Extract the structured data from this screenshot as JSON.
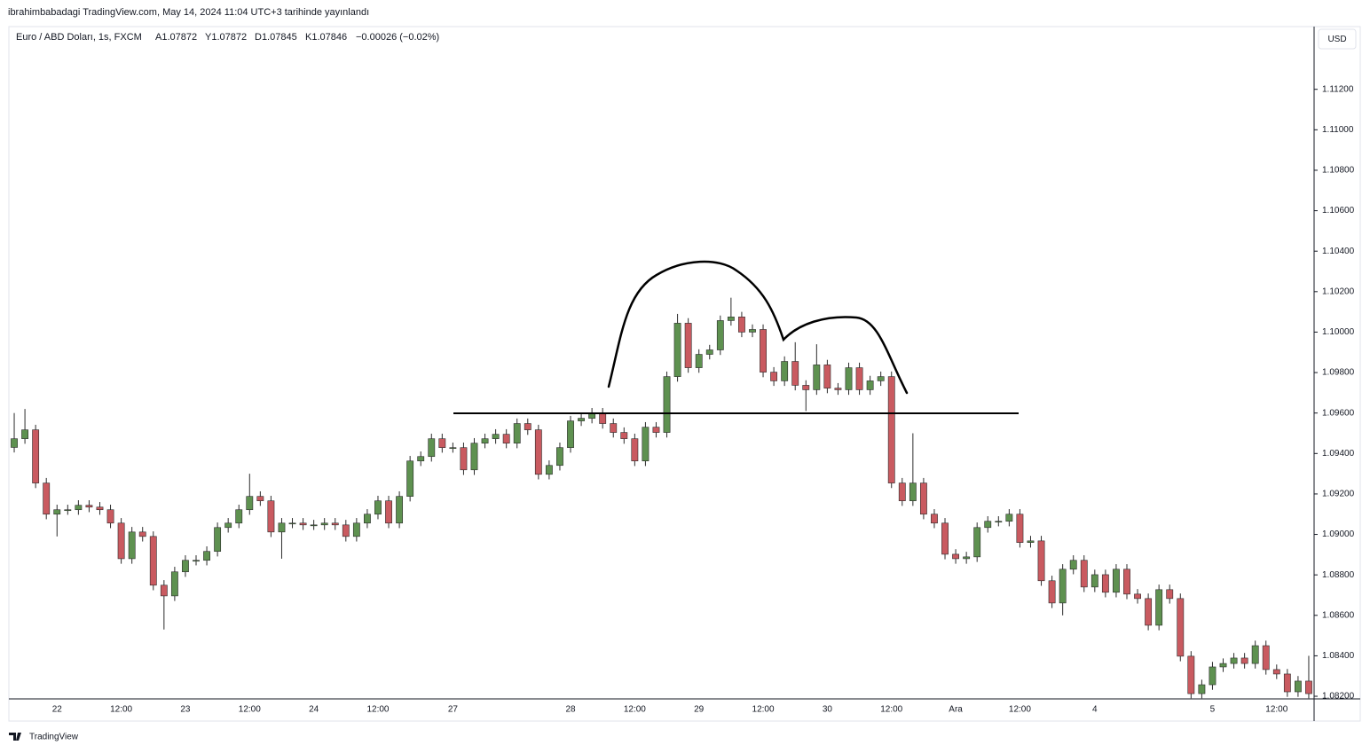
{
  "header": {
    "text": "ibrahimbabadagi TradingView.com, May 14, 2024 11:04 UTC+3 tarihinde yayınlandı"
  },
  "legend": {
    "symbol": "Euro / ABD Doları, 1s, FXCM",
    "open": "A1.07872",
    "high": "Y1.07872",
    "low": "D1.07845",
    "close": "K1.07846",
    "change": "−0.00026 (−0.02%)"
  },
  "currency_button": "USD",
  "footer": "TradingView",
  "chart_data": {
    "type": "candlestick",
    "up_color": "#5e9150",
    "down_color": "#c95a60",
    "wick_color": "#2b2b2b",
    "categories": [
      null,
      null,
      null,
      null,
      "22",
      null,
      null,
      null,
      null,
      null,
      "12:00",
      null,
      null,
      null,
      null,
      null,
      "23",
      null,
      null,
      null,
      null,
      null,
      "12:00",
      null,
      null,
      null,
      null,
      null,
      "24",
      null,
      null,
      null,
      null,
      null,
      "12:00",
      null,
      null,
      null,
      null,
      null,
      null,
      "27",
      null,
      null,
      null,
      null,
      null,
      null,
      null,
      null,
      null,
      null,
      "28",
      null,
      null,
      null,
      null,
      null,
      "12:00",
      null,
      null,
      null,
      null,
      null,
      "29",
      null,
      null,
      null,
      null,
      null,
      "12:00",
      null,
      null,
      null,
      null,
      null,
      "30",
      null,
      null,
      null,
      null,
      null,
      "12:00",
      null,
      null,
      null,
      null,
      null,
      "Ara",
      null,
      null,
      null,
      null,
      null,
      "12:00",
      null,
      null,
      null,
      null,
      null,
      null,
      "4",
      null,
      null,
      null,
      null,
      null,
      null,
      null,
      null,
      null,
      null,
      "5",
      null,
      null,
      null,
      null,
      null,
      "12:00",
      null,
      null,
      null
    ],
    "open": [
      1.0943,
      1.09473,
      1.09517,
      1.09254,
      1.091,
      1.09122,
      1.09122,
      1.09144,
      1.09135,
      1.09122,
      1.09056,
      1.0888,
      1.09012,
      1.0899,
      1.08749,
      1.08696,
      1.08815,
      1.08872,
      1.08872,
      1.08916,
      1.09034,
      1.09056,
      1.09122,
      1.09188,
      1.09166,
      1.09012,
      1.09056,
      1.09056,
      1.09047,
      1.09047,
      1.09056,
      1.09047,
      1.0899,
      1.09056,
      1.091,
      1.09166,
      1.09056,
      1.09188,
      1.09363,
      1.09385,
      1.09473,
      1.09429,
      1.09429,
      1.09319,
      1.09451,
      1.09473,
      1.09495,
      1.09451,
      1.09548,
      1.09517,
      1.09297,
      1.09341,
      1.09429,
      1.09561,
      1.09574,
      1.096,
      1.09548,
      1.09504,
      1.09473,
      1.09363,
      1.0953,
      1.09504,
      1.0978,
      1.10044,
      1.09824,
      1.0989,
      1.09912,
      1.10057,
      1.10075,
      1.1,
      1.10013,
      1.09802,
      1.09759,
      1.09855,
      1.09737,
      1.09715,
      1.09838,
      1.09723,
      1.09715,
      1.09824,
      1.09715,
      1.09759,
      1.0978,
      1.09254,
      1.09166,
      1.09254,
      1.091,
      1.09056,
      1.08902,
      1.0888,
      1.08889,
      1.09034,
      1.09065,
      1.09065,
      1.091,
      1.0896,
      1.08968,
      1.08771,
      1.08661,
      1.08828,
      1.08872,
      1.0874,
      1.08801,
      1.08714,
      1.08828,
      1.08705,
      1.08683,
      1.08551,
      1.08727,
      1.08683,
      1.08398,
      1.08213,
      1.08257,
      1.08345,
      1.08362,
      1.08389,
      1.08362,
      1.0845,
      1.08332,
      1.0831,
      1.08222,
      1.08275
    ],
    "high": [
      1.096,
      1.0962,
      1.09542,
      1.09279,
      1.09147,
      1.09147,
      1.09169,
      1.09169,
      1.0916,
      1.09147,
      1.09081,
      1.09037,
      1.09037,
      1.09015,
      1.08774,
      1.0884,
      1.08897,
      1.08897,
      1.08941,
      1.09059,
      1.09081,
      1.09147,
      1.093,
      1.09213,
      1.09191,
      1.09081,
      1.09081,
      1.09081,
      1.09072,
      1.09081,
      1.09081,
      1.09072,
      1.09081,
      1.09125,
      1.09191,
      1.09191,
      1.09213,
      1.09388,
      1.0941,
      1.09498,
      1.09498,
      1.09454,
      1.09454,
      1.09476,
      1.09498,
      1.0952,
      1.0952,
      1.09573,
      1.09573,
      1.09542,
      1.09366,
      1.09454,
      1.09586,
      1.09599,
      1.09625,
      1.09625,
      1.09573,
      1.09529,
      1.09498,
      1.09555,
      1.09555,
      1.09805,
      1.1009,
      1.10069,
      1.09915,
      1.09937,
      1.10082,
      1.1017,
      1.101,
      1.10038,
      1.10038,
      1.09827,
      1.0988,
      1.0995,
      1.09762,
      1.0994,
      1.09863,
      1.09748,
      1.09849,
      1.09849,
      1.09784,
      1.09805,
      1.09805,
      1.09279,
      1.095,
      1.09279,
      1.09125,
      1.09081,
      1.08927,
      1.08914,
      1.09059,
      1.0909,
      1.0909,
      1.09125,
      1.09125,
      1.08993,
      1.08993,
      1.08796,
      1.08853,
      1.08897,
      1.08897,
      1.08826,
      1.08826,
      1.08853,
      1.08853,
      1.0873,
      1.08708,
      1.08752,
      1.08752,
      1.08708,
      1.08423,
      1.08282,
      1.0837,
      1.08387,
      1.08414,
      1.08414,
      1.08475,
      1.08475,
      1.08357,
      1.08335,
      1.083,
      1.084
    ],
    "low": [
      1.09405,
      1.09448,
      1.09229,
      1.09075,
      1.0899,
      1.09097,
      1.09097,
      1.0911,
      1.09097,
      1.09031,
      1.08855,
      1.08855,
      1.08965,
      1.08724,
      1.0853,
      1.08671,
      1.0879,
      1.08847,
      1.08847,
      1.08891,
      1.09009,
      1.09031,
      1.09097,
      1.09141,
      1.08987,
      1.0888,
      1.09031,
      1.09022,
      1.09022,
      1.09022,
      1.09022,
      1.08965,
      1.08965,
      1.09031,
      1.09075,
      1.09031,
      1.09031,
      1.09163,
      1.09338,
      1.0936,
      1.09404,
      1.09404,
      1.09294,
      1.09294,
      1.09426,
      1.09448,
      1.09426,
      1.09426,
      1.09492,
      1.09272,
      1.09272,
      1.09316,
      1.09404,
      1.09536,
      1.09549,
      1.09523,
      1.09479,
      1.09448,
      1.09338,
      1.09338,
      1.09479,
      1.09479,
      1.09755,
      1.09799,
      1.09799,
      1.09865,
      1.09887,
      1.10032,
      1.09975,
      1.09975,
      1.09777,
      1.09734,
      1.09734,
      1.09712,
      1.0961,
      1.0969,
      1.09698,
      1.0969,
      1.0969,
      1.0969,
      1.0969,
      1.09734,
      1.09229,
      1.09141,
      1.09141,
      1.09075,
      1.09031,
      1.08877,
      1.08855,
      1.08855,
      1.08864,
      1.09009,
      1.0904,
      1.0904,
      1.08935,
      1.08935,
      1.08746,
      1.08636,
      1.086,
      1.08803,
      1.08715,
      1.08715,
      1.08689,
      1.08689,
      1.0868,
      1.08658,
      1.08526,
      1.08526,
      1.08658,
      1.08373,
      1.0819,
      1.0819,
      1.08232,
      1.0832,
      1.08337,
      1.08337,
      1.08337,
      1.08307,
      1.08285,
      1.08197,
      1.08197,
      1.0819
    ],
    "close": [
      1.09473,
      1.09517,
      1.09254,
      1.091,
      1.09122,
      1.09122,
      1.09144,
      1.09135,
      1.09122,
      1.09056,
      1.0888,
      1.09012,
      1.0899,
      1.08749,
      1.08696,
      1.08815,
      1.08872,
      1.08872,
      1.08916,
      1.09034,
      1.09056,
      1.09122,
      1.09188,
      1.09166,
      1.09012,
      1.09056,
      1.09056,
      1.09047,
      1.09047,
      1.09056,
      1.09047,
      1.0899,
      1.09056,
      1.091,
      1.09166,
      1.09056,
      1.09188,
      1.09363,
      1.09385,
      1.09473,
      1.09429,
      1.09429,
      1.09319,
      1.09451,
      1.09473,
      1.09495,
      1.09451,
      1.09548,
      1.09517,
      1.09297,
      1.09341,
      1.09429,
      1.09561,
      1.09574,
      1.096,
      1.09548,
      1.09504,
      1.09473,
      1.09363,
      1.0953,
      1.09504,
      1.0978,
      1.10044,
      1.09824,
      1.0989,
      1.09912,
      1.10057,
      1.10075,
      1.1,
      1.10013,
      1.09802,
      1.09759,
      1.09855,
      1.09737,
      1.09715,
      1.09838,
      1.09723,
      1.09715,
      1.09824,
      1.09715,
      1.09759,
      1.0978,
      1.09254,
      1.09166,
      1.09254,
      1.091,
      1.09056,
      1.08902,
      1.0888,
      1.08889,
      1.09034,
      1.09065,
      1.09065,
      1.091,
      1.0896,
      1.08968,
      1.08771,
      1.08661,
      1.08828,
      1.08872,
      1.0874,
      1.08801,
      1.08714,
      1.08828,
      1.08705,
      1.08683,
      1.08551,
      1.08727,
      1.08683,
      1.08398,
      1.08213,
      1.08257,
      1.08345,
      1.08362,
      1.08389,
      1.08362,
      1.0845,
      1.08332,
      1.0831,
      1.08222,
      1.08275,
      1.08213
    ],
    "ylim": [
      1.08187,
      1.1151
    ],
    "yticks": [
      {
        "value": 1.082,
        "label": "1.08200"
      },
      {
        "value": 1.084,
        "label": "1.08400"
      },
      {
        "value": 1.086,
        "label": "1.08600"
      },
      {
        "value": 1.088,
        "label": "1.08800"
      },
      {
        "value": 1.09,
        "label": "1.09000"
      },
      {
        "value": 1.092,
        "label": "1.09200"
      },
      {
        "value": 1.094,
        "label": "1.09400"
      },
      {
        "value": 1.096,
        "label": "1.09600"
      },
      {
        "value": 1.098,
        "label": "1.09800"
      },
      {
        "value": 1.1,
        "label": "1.10000"
      },
      {
        "value": 1.102,
        "label": "1.10200"
      },
      {
        "value": 1.104,
        "label": "1.10400"
      },
      {
        "value": 1.106,
        "label": "1.10600"
      },
      {
        "value": 1.108,
        "label": "1.10800"
      },
      {
        "value": 1.11,
        "label": "1.11000"
      },
      {
        "value": 1.112,
        "label": "1.11200"
      }
    ]
  }
}
